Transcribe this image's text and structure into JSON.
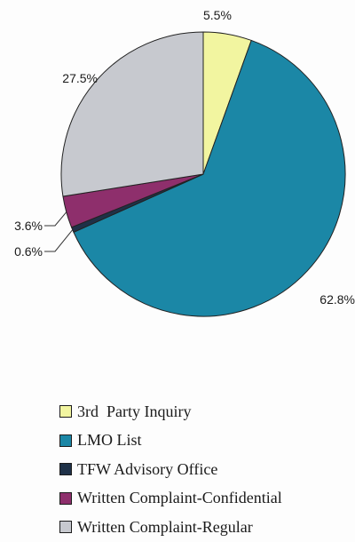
{
  "chart_data": {
    "type": "pie",
    "title": "",
    "legend_position": "bottom",
    "slices": [
      {
        "label": "3rd  Party Inquiry",
        "value": 5.5,
        "value_label": "5.5%",
        "color": "#f2f5a0"
      },
      {
        "label": "LMO List",
        "value": 62.8,
        "value_label": "62.8%",
        "color": "#1b87a6"
      },
      {
        "label": "TFW Advisory Office",
        "value": 0.6,
        "value_label": "0.6%",
        "color": "#1f3148"
      },
      {
        "label": "Written Complaint-Confidential",
        "value": 3.6,
        "value_label": "3.6%",
        "color": "#8e2f6c"
      },
      {
        "label": "Written Complaint-Regular",
        "value": 27.5,
        "value_label": "27.5%",
        "color": "#c7c9cf"
      }
    ]
  }
}
